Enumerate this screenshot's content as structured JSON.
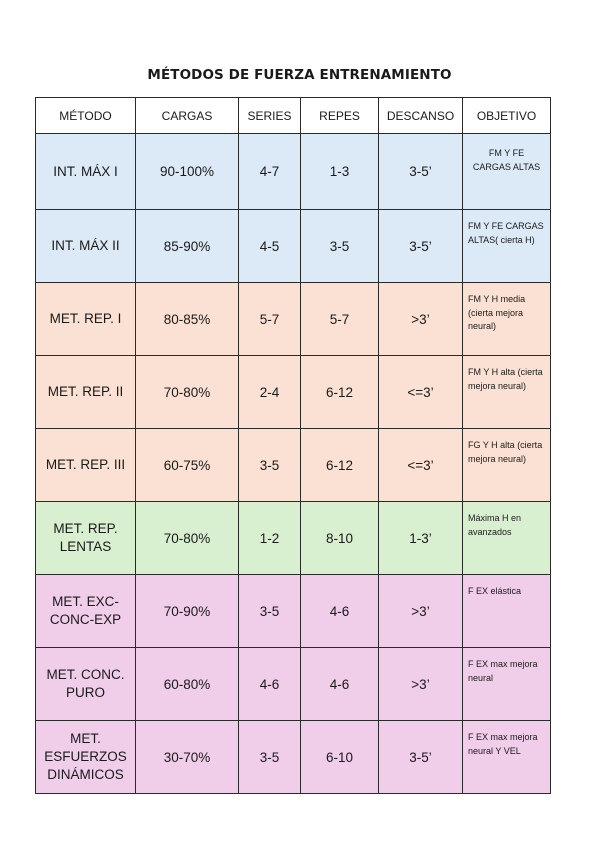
{
  "title": "MÉTODOS DE FUERZA ENTRENAMIENTO",
  "colors": {
    "blue": "#dce9f6",
    "peach": "#fbe1d3",
    "green": "#d8f0d0",
    "pink": "#f0cde9"
  },
  "headers": [
    "MÉTODO",
    "CARGAS",
    "SERIES",
    "REPES",
    "DESCANSO",
    "OBJETIVO"
  ],
  "rows": [
    {
      "metodo": "INT. MÁX I",
      "cargas": "90-100%",
      "series": "4-7",
      "repes": "1-3",
      "descanso": "3-5’",
      "objetivo": "FM Y FE CARGAS ALTAS",
      "color": "blue"
    },
    {
      "metodo": "INT. MÁX II",
      "cargas": "85-90%",
      "series": "4-5",
      "repes": "3-5",
      "descanso": "3-5’",
      "objetivo": "FM Y FE CARGAS ALTAS( cierta H)",
      "color": "blue"
    },
    {
      "metodo": "MET. REP. I",
      "cargas": "80-85%",
      "series": "5-7",
      "repes": "5-7",
      "descanso": ">3’",
      "objetivo": "FM Y H media (cierta mejora neural)",
      "color": "peach"
    },
    {
      "metodo": "MET. REP. II",
      "cargas": "70-80%",
      "series": "2-4",
      "repes": "6-12",
      "descanso": "<=3’",
      "objetivo": "FM Y H alta (cierta mejora neural)",
      "color": "peach"
    },
    {
      "metodo": "MET. REP. III",
      "cargas": "60-75%",
      "series": "3-5",
      "repes": "6-12",
      "descanso": "<=3’",
      "objetivo": "FG Y H alta (cierta mejora neural)",
      "color": "peach"
    },
    {
      "metodo": "MET. REP. LENTAS",
      "cargas": "70-80%",
      "series": "1-2",
      "repes": "8-10",
      "descanso": "1-3’",
      "objetivo": "Máxima H en avanzados",
      "color": "green"
    },
    {
      "metodo": "MET. EXC-CONC-EXP",
      "cargas": "70-90%",
      "series": "3-5",
      "repes": "4-6",
      "descanso": ">3’",
      "objetivo": "F EX elástica",
      "color": "pink"
    },
    {
      "metodo": "MET. CONC. PURO",
      "cargas": "60-80%",
      "series": "4-6",
      "repes": "4-6",
      "descanso": ">3’",
      "objetivo": "F EX max mejora neural",
      "color": "pink"
    },
    {
      "metodo": "MET. ESFUERZOS DINÁMICOS",
      "cargas": "30-70%",
      "series": "3-5",
      "repes": "6-10",
      "descanso": "3-5’",
      "objetivo": "F EX max mejora neural Y VEL",
      "color": "pink"
    }
  ]
}
